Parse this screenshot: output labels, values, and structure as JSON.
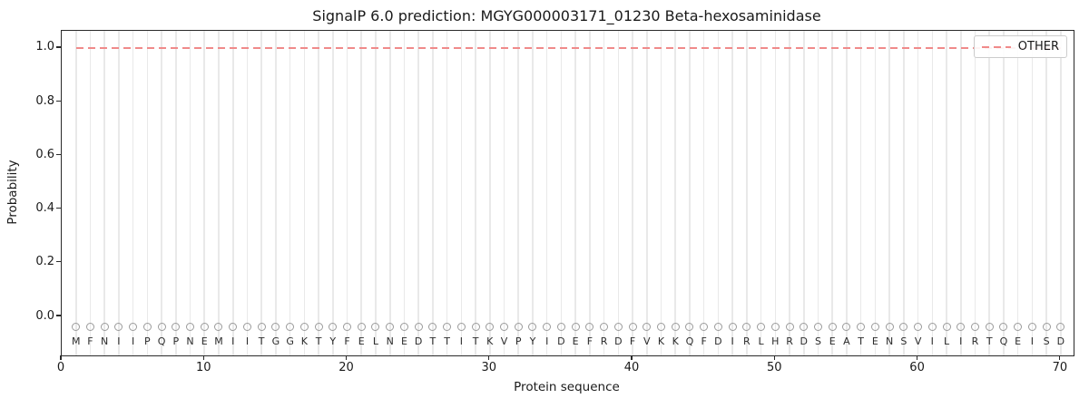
{
  "title": "SignalP 6.0 prediction: MGYG000003171_01230 Beta-hexosaminidase",
  "axes": {
    "xlabel": "Protein sequence",
    "ylabel": "Probability",
    "xtick_labels": [
      "0",
      "10",
      "20",
      "30",
      "40",
      "50",
      "60",
      "70"
    ],
    "xtick_values": [
      0,
      10,
      20,
      30,
      40,
      50,
      60,
      70
    ],
    "ytick_labels": [
      "0.0",
      "0.2",
      "0.4",
      "0.6",
      "0.8",
      "1.0"
    ],
    "ytick_values": [
      0.0,
      0.2,
      0.4,
      0.6,
      0.8,
      1.0
    ]
  },
  "legend": {
    "items": [
      {
        "label": "OTHER",
        "color": "#f08a8a",
        "linestyle": "dashed"
      }
    ]
  },
  "colors": {
    "grid": "#e9e9e9",
    "spine": "#2a2a2a",
    "marker": "#9b9b9b",
    "letter": "#2b2b2b",
    "other_line": "#f08a8a"
  },
  "chart_data": {
    "type": "line",
    "title": "SignalP 6.0 prediction: MGYG000003171_01230 Beta-hexosaminidase",
    "xlabel": "Protein sequence",
    "ylabel": "Probability",
    "xlim": [
      0,
      70.9
    ],
    "ylim": [
      -0.145,
      1.064
    ],
    "grid": "vertical gridline per residue position, no horizontal gridlines",
    "legend_position": "upper right",
    "series": [
      {
        "name": "OTHER",
        "linestyle": "dashed",
        "color": "#f08a8a",
        "x_start": 1,
        "x_end": 70,
        "constant_value": 1.0,
        "n_points": 70
      }
    ],
    "sequence": "MFNIIPQPNEMIITGGKTYFELNEDTTITKVPYIDEFRDFVKKQFDIRLHRDSEATENSVILIRTQEISD",
    "residue_markers": {
      "symbol": "circle-outline",
      "y_value": -0.04,
      "color": "#9b9b9b"
    }
  }
}
